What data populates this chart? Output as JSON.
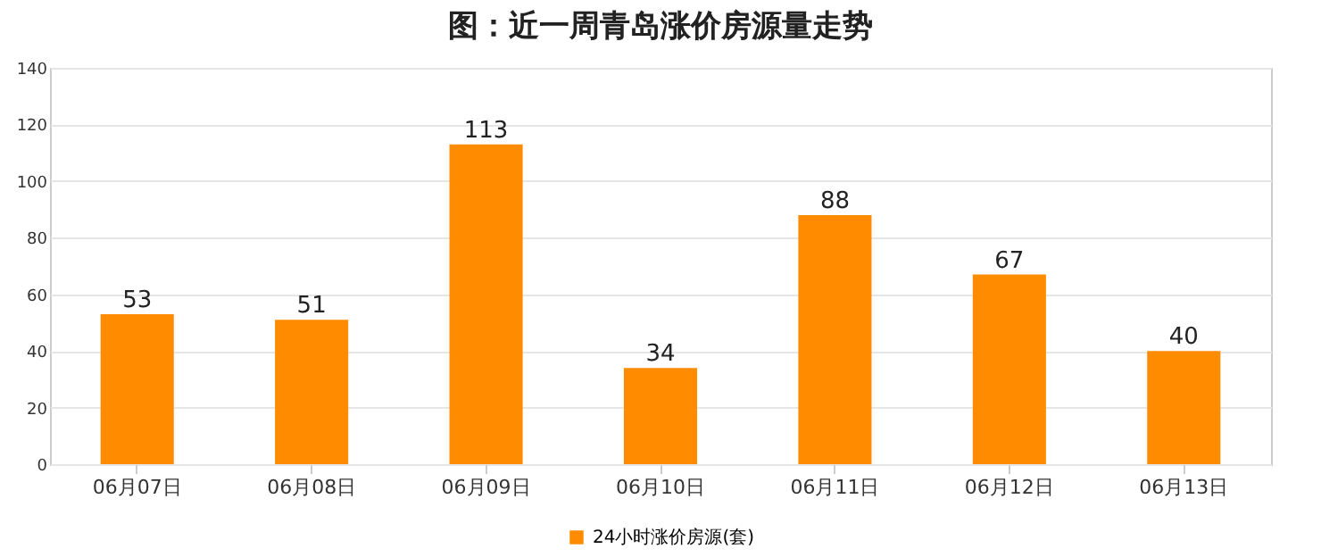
{
  "chart_data": {
    "type": "bar",
    "title": "图：近一周青岛涨价房源量走势",
    "categories": [
      "06月07日",
      "06月08日",
      "06月09日",
      "06月10日",
      "06月11日",
      "06月12日",
      "06月13日"
    ],
    "series": [
      {
        "name": "24小时涨价房源(套)",
        "color": "#ff8c00",
        "values": [
          53,
          51,
          113,
          34,
          88,
          67,
          40
        ]
      }
    ],
    "ylim": [
      0,
      140
    ],
    "yticks": [
      0,
      20,
      40,
      60,
      80,
      100,
      120,
      140
    ],
    "grid": "y",
    "legend": "bottom",
    "data_labels": true
  }
}
